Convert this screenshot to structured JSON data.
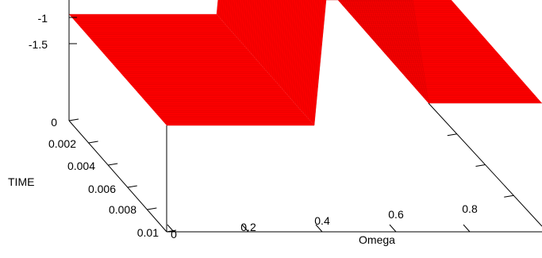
{
  "chart_data": {
    "type": "surface",
    "title": "",
    "xlabel": "Omega",
    "ylabel": "TIME",
    "zlabel": "",
    "x_ticks": [
      "0",
      "0.2",
      "0.4",
      "0.6",
      "0.8"
    ],
    "y_ticks": [
      "0",
      "0.002",
      "0.004",
      "0.006",
      "0.008",
      "0.01"
    ],
    "z_ticks": [
      "-1",
      "-1.5"
    ],
    "xlim": [
      0,
      1
    ],
    "ylim": [
      0,
      0.01
    ],
    "surface_color": "#ff0000",
    "series": [
      {
        "omega": [
          0,
          0.38,
          0.4,
          0.68,
          0.72,
          1.0
        ],
        "z": [
          -1,
          -1,
          -0.8,
          -0.8,
          -1,
          -1
        ]
      }
    ]
  }
}
